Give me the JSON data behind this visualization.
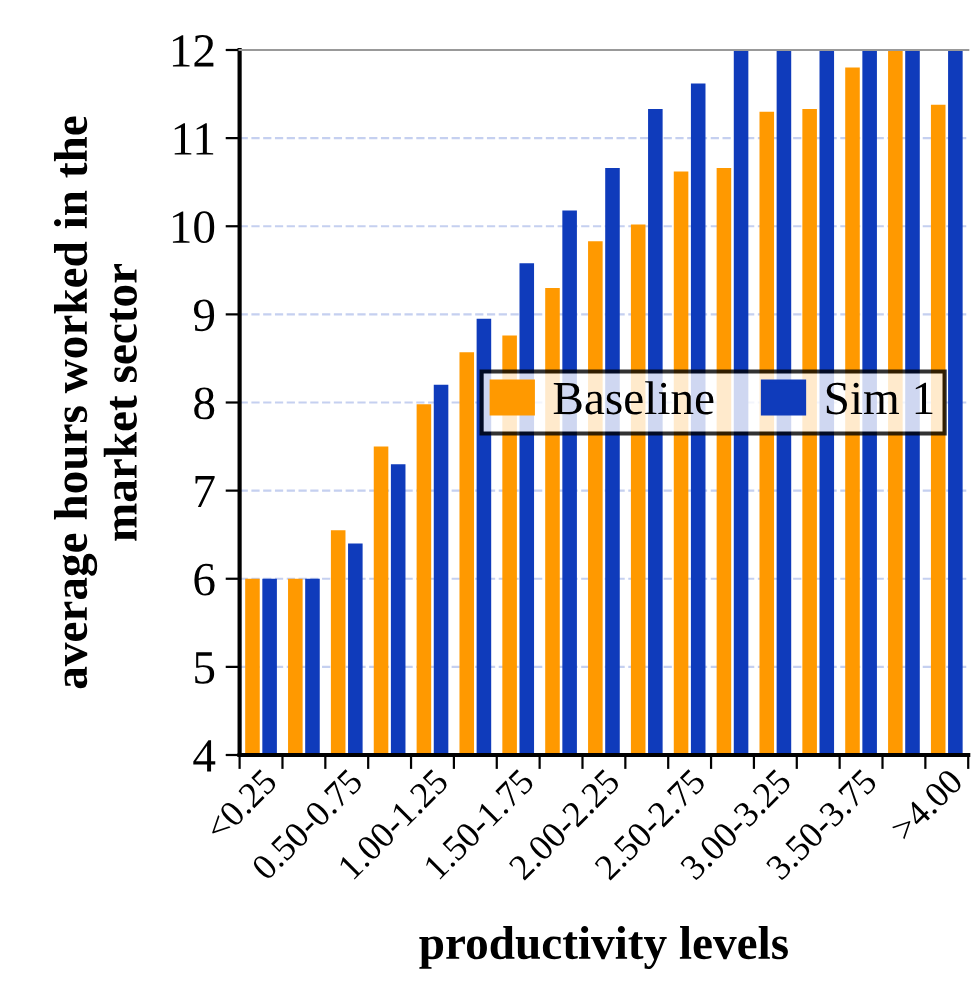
{
  "chart_data": {
    "type": "bar",
    "xlabel": "productivity levels",
    "ylabel": "average hours worked in the\nmarket sector",
    "categories": [
      "<0.25",
      null,
      "0.50-0.75",
      null,
      "1.00-1.25",
      null,
      "1.50-1.75",
      null,
      "2.00-2.25",
      null,
      "2.50-2.75",
      null,
      "3.00-3.25",
      null,
      "3.50-3.75",
      null,
      ">4.00"
    ],
    "series": [
      {
        "name": "Baseline",
        "color": "#ff9900",
        "values": [
          6.0,
          6.0,
          6.55,
          7.5,
          7.98,
          8.57,
          8.76,
          9.3,
          9.83,
          10.02,
          10.62,
          10.66,
          11.3,
          11.33,
          11.8,
          12.0,
          11.38
        ]
      },
      {
        "name": "Sim 1",
        "color": "#0f3bbb",
        "values": [
          6.0,
          6.0,
          6.4,
          7.3,
          8.2,
          8.95,
          9.58,
          10.18,
          10.66,
          11.33,
          11.62,
          12.0,
          12.0,
          12.0,
          12.0,
          12.0,
          12.0
        ]
      }
    ],
    "ylim": [
      4,
      12
    ],
    "yticks": [
      4,
      5,
      6,
      7,
      8,
      9,
      10,
      11,
      12
    ],
    "grid": "y",
    "legend": "center right"
  }
}
